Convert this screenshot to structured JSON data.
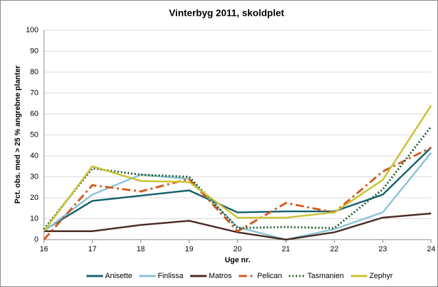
{
  "chart_data": {
    "type": "line",
    "title": "Vinterbyg 2011, skoldplet",
    "xlabel": "Uge nr.",
    "ylabel": "Pct. obs. med > 25 % angrebne planter",
    "x": [
      16,
      17,
      18,
      19,
      20,
      21,
      22,
      23,
      24
    ],
    "xlim": [
      16,
      24
    ],
    "xticks": [
      16,
      17,
      18,
      19,
      20,
      21,
      22,
      23,
      24
    ],
    "ylim": [
      0,
      100
    ],
    "yticks": [
      0,
      10,
      20,
      30,
      40,
      50,
      60,
      70,
      80,
      90,
      100
    ],
    "grid": true,
    "legend": "bottom",
    "series": [
      {
        "name": "Anisette",
        "color": "#17606e",
        "dash": "solid",
        "values": [
          4.5,
          18.5,
          21,
          23.5,
          13,
          13.5,
          13.5,
          21.5,
          44
        ]
      },
      {
        "name": "Finlissa",
        "color": "#8cc3d4",
        "dash": "solid",
        "values": [
          4,
          21.5,
          31,
          29,
          6,
          0,
          5,
          13,
          41.5
        ]
      },
      {
        "name": "Matros",
        "color": "#4a2b26",
        "dash": "solid",
        "values": [
          4,
          4,
          7,
          9,
          3.5,
          0,
          3.5,
          10.5,
          12.5
        ]
      },
      {
        "name": "Pelican",
        "color": "#d35a1e",
        "dash": "dashdot",
        "values": [
          0,
          26,
          23,
          29,
          4,
          17.5,
          13,
          32.5,
          44
        ]
      },
      {
        "name": "Tasmanien",
        "color": "#1e5a2e",
        "dash": "dot",
        "values": [
          5,
          34,
          31,
          30,
          5.5,
          6,
          5.5,
          24,
          54
        ]
      },
      {
        "name": "Zephyr",
        "color": "#c8c232",
        "dash": "solid",
        "values": [
          4,
          35,
          28,
          27.5,
          10.5,
          10.5,
          13,
          28.5,
          64
        ]
      }
    ]
  }
}
